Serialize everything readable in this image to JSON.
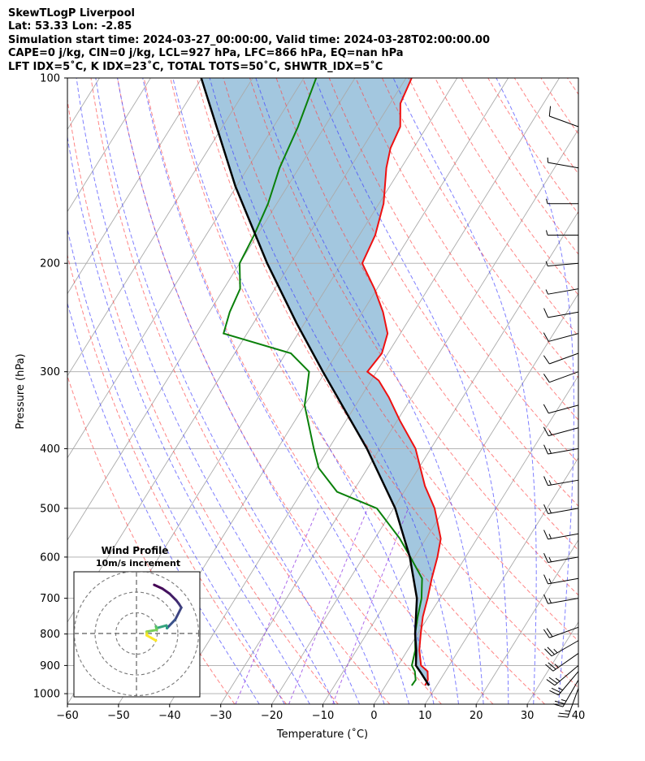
{
  "header": {
    "line1": "SkewTLogP Liverpool",
    "line2": "Lat: 53.33   Lon: -2.85",
    "line3": "Simulation start time: 2024-03-27_00:00:00, Valid time: 2024-03-28T02:00:00.00",
    "line4": "CAPE=0 j/kg, CIN=0 j/kg, LCL=927 hPa, LFC=866 hPa, EQ=nan hPa",
    "line5": "LFT IDX=5˚C, K IDX=23˚C, TOTAL TOTS=50˚C, SHWTR_IDX=5˚C"
  },
  "colors": {
    "temperature": "#ee1111",
    "dewpoint": "#0a800a",
    "parcel": "#000000",
    "cape_fill": "#a3c7df",
    "dry_adiabat": "#ff4444",
    "moist_adiabat": "#3b3bff",
    "mixing_ratio": "#8a2be2",
    "isotherm": "#aaaaaa"
  },
  "chart_data": [
    {
      "type": "line",
      "title": "",
      "xlabel": "Temperature (˚C)",
      "ylabel": "Pressure (hPa)",
      "xlim": [
        -60,
        40
      ],
      "ylim": [
        1040,
        100
      ],
      "yscale": "log",
      "skew_deg_per_decade": 75,
      "grid": true,
      "x_ticks": [
        "−60",
        "−50",
        "−40",
        "−30",
        "−20",
        "−10",
        "0",
        "10",
        "20",
        "30",
        "40"
      ],
      "y_ticks": [
        "100",
        "200",
        "300",
        "400",
        "500",
        "600",
        "700",
        "800",
        "900",
        "1000"
      ],
      "series": [
        {
          "key": "temperature",
          "pressure": [
            970,
            950,
            920,
            900,
            850,
            800,
            750,
            700,
            650,
            600,
            560,
            500,
            460,
            400,
            360,
            330,
            310,
            300,
            280,
            260,
            240,
            220,
            200,
            180,
            160,
            140,
            130,
            120,
            110,
            100
          ],
          "values": [
            7.7,
            7.6,
            6.5,
            4.5,
            2.3,
            0.6,
            -1.1,
            -2.4,
            -4.0,
            -5.5,
            -7.1,
            -12.0,
            -16.6,
            -23.0,
            -29.5,
            -34.5,
            -38.5,
            -41.8,
            -41.2,
            -42.5,
            -46.0,
            -50.5,
            -56.0,
            -56.9,
            -59.1,
            -62.9,
            -64.5,
            -65.2,
            -68.0,
            -68.9
          ]
        },
        {
          "key": "dewpoint",
          "pressure": [
            970,
            950,
            920,
            900,
            850,
            800,
            750,
            700,
            650,
            600,
            560,
            500,
            470,
            430,
            400,
            360,
            340,
            320,
            300,
            280,
            260,
            240,
            220,
            200,
            180,
            160,
            140,
            120,
            100
          ],
          "values": [
            5.1,
            5.2,
            4.0,
            2.7,
            1.5,
            -0.5,
            -2.1,
            -3.6,
            -5.9,
            -10.8,
            -15.1,
            -23.3,
            -33.1,
            -39.6,
            -42.9,
            -47.5,
            -50.0,
            -51.5,
            -53.2,
            -59.0,
            -74.6,
            -76.0,
            -76.8,
            -80.0,
            -80.6,
            -81.7,
            -83.8,
            -85.2,
            -87.6
          ]
        },
        {
          "key": "parcel",
          "pressure": [
            970,
            927,
            900,
            850,
            800,
            700,
            600,
            500,
            400,
            300,
            250,
            200,
            150,
            100
          ],
          "values": [
            8.5,
            5.5,
            3.5,
            1.7,
            -0.5,
            -4.5,
            -10.9,
            -19.7,
            -32.5,
            -50.5,
            -61.6,
            -74.6,
            -90.2,
            -110.1
          ]
        }
      ],
      "wind_barbs": {
        "pressure": [
          980,
          950,
          920,
          900,
          860,
          820,
          780,
          700,
          650,
          600,
          550,
          500,
          450,
          400,
          370,
          340,
          300,
          280,
          260,
          240,
          220,
          200,
          180,
          160,
          140,
          120
        ],
        "speed_ms": [
          25,
          25,
          25,
          25,
          25,
          25,
          20,
          15,
          15,
          15,
          15,
          15,
          15,
          15,
          15,
          10,
          10,
          10,
          10,
          10,
          5,
          5,
          5,
          5,
          5,
          10
        ],
        "direction_deg": [
          200,
          210,
          220,
          230,
          235,
          240,
          250,
          260,
          260,
          260,
          260,
          260,
          260,
          260,
          255,
          255,
          250,
          250,
          255,
          260,
          260,
          265,
          270,
          270,
          280,
          290
        ]
      }
    },
    {
      "type": "line",
      "title": "Wind Profile",
      "subtitle": "10m/s increment"
    }
  ]
}
